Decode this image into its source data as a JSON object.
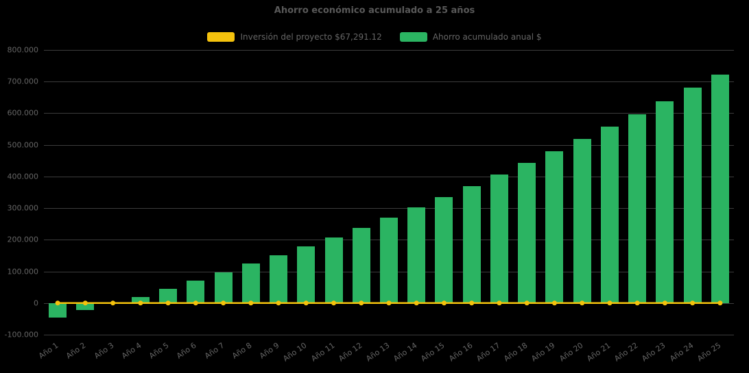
{
  "colors": {
    "background": "#000000",
    "bar": "#2bb462",
    "line": "#f4c20d",
    "grid": "#3d3d3d",
    "text": "#666666",
    "title": "#595959"
  },
  "chart_data": {
    "type": "bar",
    "title": "Ahorro económico acumulado a 25 años",
    "xlabel": "",
    "ylabel": "",
    "ylim": [
      -100000,
      800000
    ],
    "ytick_interval": 100000,
    "ytick_labels": [
      "800.000",
      "700.000",
      "600.000",
      "500.000",
      "400.000",
      "300.000",
      "200.000",
      "100.000",
      "0",
      "-100.000"
    ],
    "grid": true,
    "legend_position": "top",
    "categories": [
      "Año 1",
      "Año 2",
      "Año 3",
      "Año 4",
      "Año 5",
      "Año 6",
      "Año 7",
      "Año 8",
      "Año 9",
      "Año 10",
      "Año 11",
      "Año 12",
      "Año 13",
      "Año 14",
      "Año 15",
      "Año 16",
      "Año 17",
      "Año 18",
      "Año 19",
      "Año 20",
      "Año 21",
      "Año 22",
      "Año 23",
      "Año 24",
      "Año 25"
    ],
    "series": [
      {
        "name": "Inversión del proyecto $67,291.12",
        "type": "line",
        "color": "#f4c20d",
        "values": [
          0,
          0,
          0,
          0,
          0,
          0,
          0,
          0,
          0,
          0,
          0,
          0,
          0,
          0,
          0,
          0,
          0,
          0,
          0,
          0,
          0,
          0,
          0,
          0,
          0
        ]
      },
      {
        "name": "Ahorro acumulado anual $",
        "type": "column",
        "color": "#2bb462",
        "values": [
          -45000,
          -22000,
          2000,
          20000,
          45000,
          71000,
          97000,
          125000,
          152000,
          180000,
          208000,
          238000,
          270000,
          302000,
          335000,
          369000,
          406000,
          442000,
          479000,
          518000,
          557000,
          596000,
          637000,
          680000,
          723000
        ]
      }
    ]
  }
}
